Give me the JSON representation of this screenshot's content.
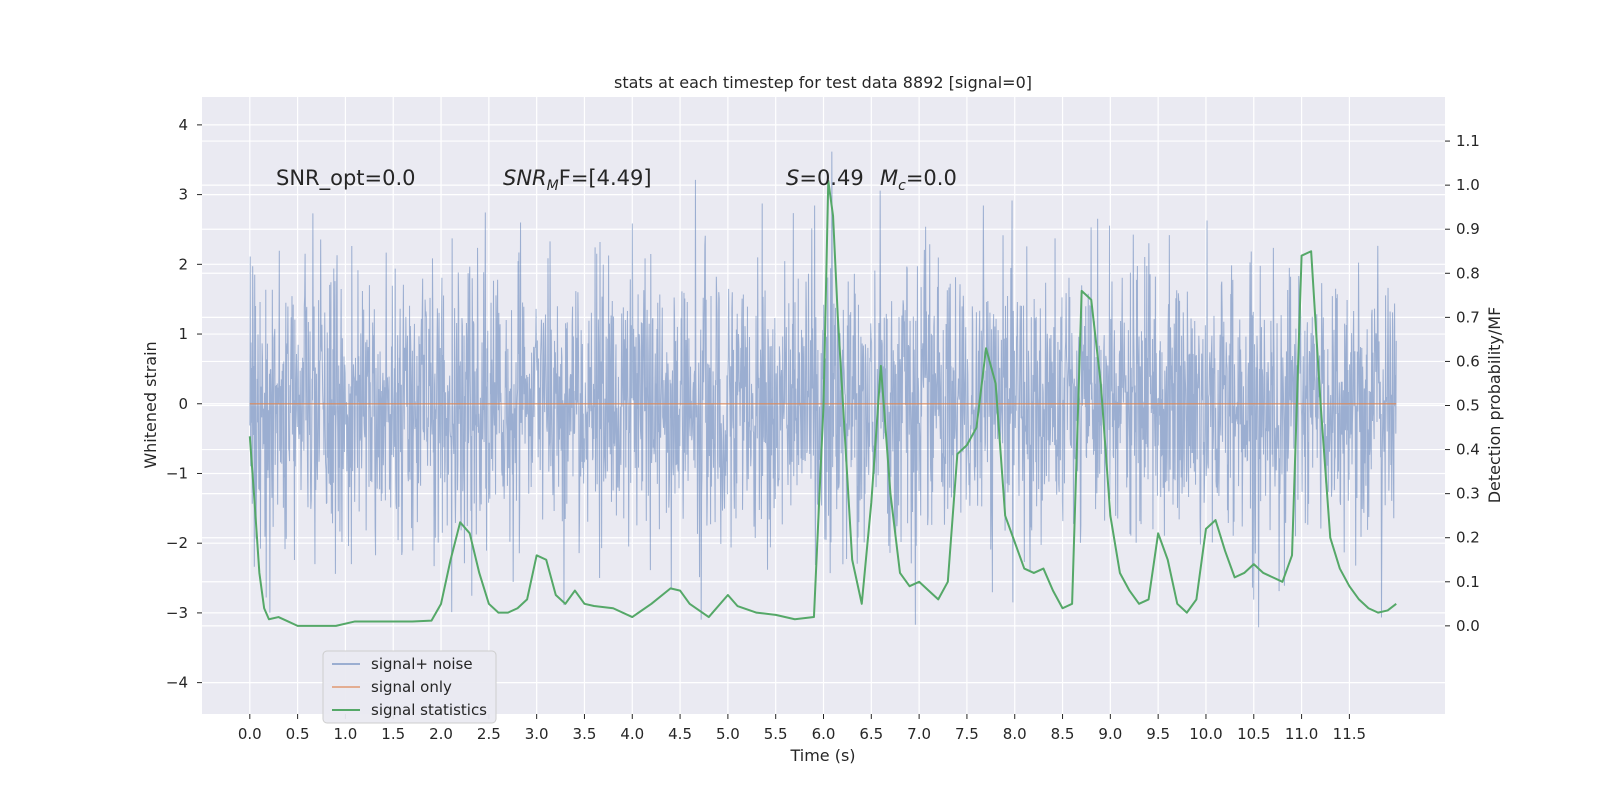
{
  "chart_data": {
    "type": "line",
    "title": "stats at each timestep for test data 8892 [signal=0]",
    "xlabel": "Time (s)",
    "ylabel": "Whitened strain",
    "y2label": "Detection probability/MF",
    "xlim": [
      -0.5,
      12.5
    ],
    "ylim": [
      -4.45,
      4.4
    ],
    "y2lim": [
      -0.2,
      1.2
    ],
    "x_ticks": [
      "0.0",
      "0.5",
      "1.0",
      "1.5",
      "2.0",
      "2.5",
      "3.0",
      "3.5",
      "4.0",
      "4.5",
      "5.0",
      "5.5",
      "6.0",
      "6.5",
      "7.0",
      "7.5",
      "8.0",
      "8.5",
      "9.0",
      "9.5",
      "10.0",
      "10.5",
      "11.0",
      "11.5"
    ],
    "x_tick_values": [
      0,
      0.5,
      1,
      1.5,
      2,
      2.5,
      3,
      3.5,
      4,
      4.5,
      5,
      5.5,
      6,
      6.5,
      7,
      7.5,
      8,
      8.5,
      9,
      9.5,
      10,
      10.5,
      11,
      11.5
    ],
    "y_ticks": [
      "4",
      "3",
      "2",
      "1",
      "0",
      "−1",
      "−2",
      "−3",
      "−4"
    ],
    "y_tick_values": [
      4,
      3,
      2,
      1,
      0,
      -1,
      -2,
      -3,
      -4
    ],
    "y2_ticks": [
      "1.1",
      "1.0",
      "0.9",
      "0.8",
      "0.7",
      "0.6",
      "0.5",
      "0.4",
      "0.3",
      "0.2",
      "0.1",
      "0.0"
    ],
    "y2_tick_values": [
      1.1,
      1.0,
      0.9,
      0.8,
      0.7,
      0.6,
      0.5,
      0.4,
      0.3,
      0.2,
      0.1,
      0.0
    ],
    "grid": true,
    "legend_position": "lower-left",
    "annotations": {
      "snr_opt": "SNR_opt=0.0",
      "snr_mf_sym": "SNR",
      "snr_mf_sub": "M",
      "snr_mf_rest": "F=[4.49]",
      "s_sym": "S",
      "s_rest": "=0.49",
      "mc_sym": "M",
      "mc_sub": "c",
      "mc_rest": "=0.0"
    },
    "series": [
      {
        "name": "signal+ noise",
        "color": "#4c72b0",
        "axis": "left",
        "t_start": 0,
        "t_end": 11.99,
        "envelope": {
          "core_abs": 1.3,
          "typical_abs": 2.0,
          "peak_max": 4.05,
          "peak_min": -4.1
        }
      },
      {
        "name": "signal only",
        "color": "#dd8452",
        "axis": "left",
        "x": [
          0,
          11.99
        ],
        "y": [
          0,
          0
        ]
      },
      {
        "name": "signal statistics",
        "color": "#55a868",
        "axis": "right",
        "x": [
          0,
          0.05,
          0.1,
          0.15,
          0.2,
          0.3,
          0.4,
          0.5,
          0.7,
          0.9,
          1.1,
          1.3,
          1.5,
          1.7,
          1.9,
          2.0,
          2.1,
          2.2,
          2.3,
          2.4,
          2.5,
          2.6,
          2.7,
          2.8,
          2.9,
          3.0,
          3.1,
          3.2,
          3.3,
          3.4,
          3.5,
          3.6,
          3.8,
          4.0,
          4.2,
          4.4,
          4.5,
          4.6,
          4.8,
          5.0,
          5.1,
          5.3,
          5.5,
          5.7,
          5.9,
          6.0,
          6.05,
          6.1,
          6.15,
          6.3,
          6.4,
          6.5,
          6.6,
          6.7,
          6.8,
          6.9,
          7.0,
          7.1,
          7.2,
          7.3,
          7.4,
          7.5,
          7.6,
          7.7,
          7.8,
          7.9,
          8.0,
          8.1,
          8.2,
          8.3,
          8.4,
          8.5,
          8.6,
          8.7,
          8.8,
          8.9,
          9.0,
          9.1,
          9.2,
          9.3,
          9.4,
          9.5,
          9.6,
          9.7,
          9.8,
          9.9,
          10.0,
          10.1,
          10.2,
          10.3,
          10.4,
          10.5,
          10.6,
          10.7,
          10.8,
          10.9,
          11.0,
          11.1,
          11.2,
          11.3,
          11.4,
          11.5,
          11.6,
          11.7,
          11.8,
          11.9,
          11.99
        ],
        "y": [
          0.43,
          0.28,
          0.12,
          0.04,
          0.015,
          0.02,
          0.01,
          0.0,
          0.0,
          0.0,
          0.01,
          0.01,
          0.01,
          0.01,
          0.012,
          0.05,
          0.15,
          0.235,
          0.21,
          0.12,
          0.05,
          0.03,
          0.03,
          0.04,
          0.06,
          0.16,
          0.15,
          0.07,
          0.05,
          0.08,
          0.05,
          0.045,
          0.04,
          0.02,
          0.05,
          0.085,
          0.08,
          0.05,
          0.02,
          0.07,
          0.045,
          0.03,
          0.025,
          0.015,
          0.02,
          0.5,
          1.01,
          0.93,
          0.7,
          0.15,
          0.05,
          0.28,
          0.59,
          0.3,
          0.12,
          0.09,
          0.1,
          0.08,
          0.06,
          0.1,
          0.39,
          0.41,
          0.45,
          0.63,
          0.55,
          0.25,
          0.19,
          0.13,
          0.12,
          0.13,
          0.08,
          0.04,
          0.05,
          0.76,
          0.74,
          0.55,
          0.25,
          0.12,
          0.08,
          0.05,
          0.06,
          0.21,
          0.15,
          0.05,
          0.03,
          0.06,
          0.22,
          0.24,
          0.17,
          0.11,
          0.12,
          0.14,
          0.12,
          0.11,
          0.1,
          0.16,
          0.84,
          0.85,
          0.5,
          0.2,
          0.13,
          0.09,
          0.06,
          0.04,
          0.03,
          0.035,
          0.05
        ]
      }
    ]
  }
}
